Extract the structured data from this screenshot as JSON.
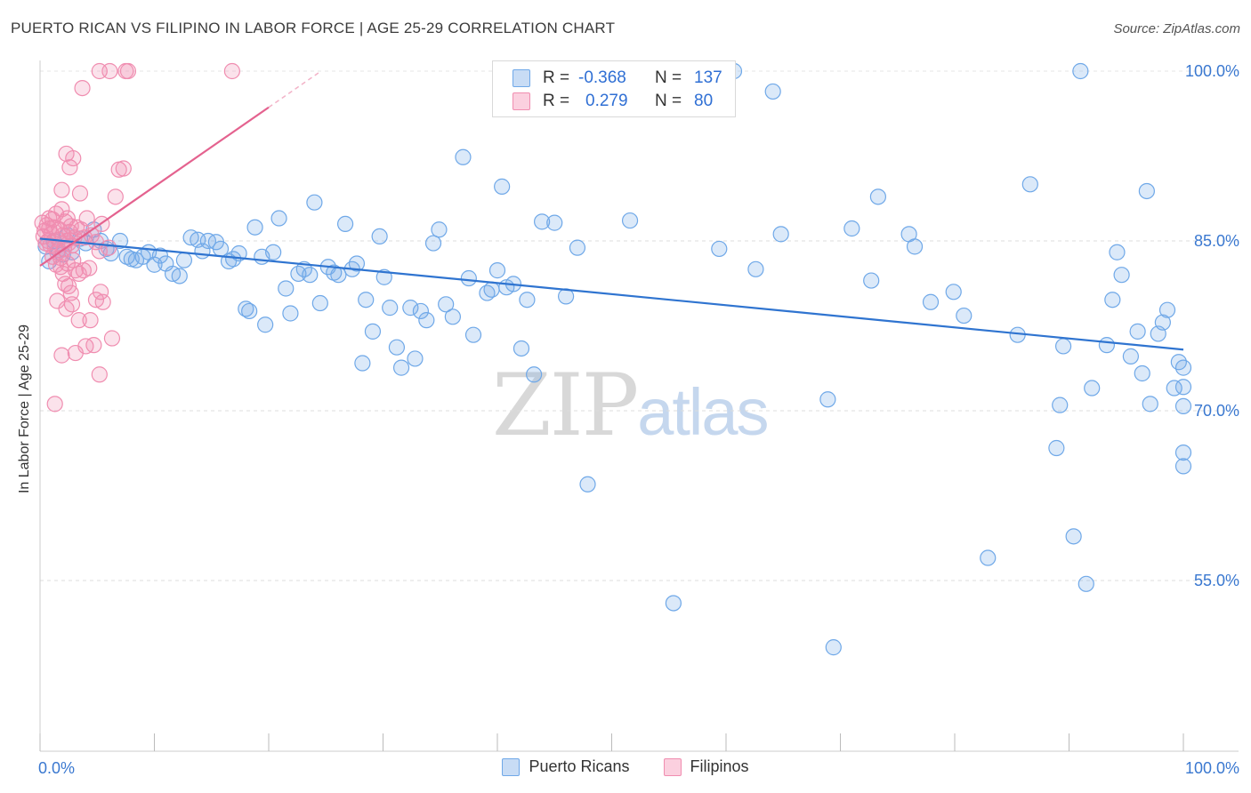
{
  "header": {
    "title": "PUERTO RICAN VS FILIPINO IN LABOR FORCE | AGE 25-29 CORRELATION CHART",
    "source": "Source: ZipAtlas.com"
  },
  "watermark": {
    "zip": "ZIP",
    "atlas": "atlas"
  },
  "legend": {
    "rows": [
      {
        "r_label": "R =",
        "r_value": "-0.368",
        "n_label": "N =",
        "n_value": "137",
        "color": "#6fa8e8"
      },
      {
        "r_label": "R =",
        "r_value": "0.279",
        "n_label": "N =",
        "n_value": "80",
        "color": "#f08db0"
      }
    ],
    "bottom": [
      {
        "name": "Puerto Ricans",
        "color": "#6fa8e8"
      },
      {
        "name": "Filipinos",
        "color": "#f08db0"
      }
    ]
  },
  "chart_data": {
    "type": "scatter",
    "title": "PUERTO RICAN VS FILIPINO IN LABOR FORCE | AGE 25-29 CORRELATION CHART",
    "xlabel": "",
    "ylabel": "In Labor Force | Age 25-29",
    "xlim": [
      0,
      100
    ],
    "ylim": [
      43,
      100
    ],
    "x_tick_labels": [
      "0.0%",
      "100.0%"
    ],
    "y_ticks": [
      55,
      70,
      85,
      100
    ],
    "y_tick_labels": [
      "55.0%",
      "70.0%",
      "85.0%",
      "100.0%"
    ],
    "grid": "horizontal-dashed",
    "series": [
      {
        "name": "Puerto Ricans",
        "color": "#6fa8e8",
        "trend": {
          "x": [
            0,
            100
          ],
          "y": [
            85.2,
            75.4
          ]
        },
        "points": [
          [
            0.5,
            84.5
          ],
          [
            0.8,
            83.2
          ],
          [
            1.2,
            85.0
          ],
          [
            1.6,
            84.2
          ],
          [
            2.0,
            83.8
          ],
          [
            2.4,
            85.5
          ],
          [
            2.8,
            84.0
          ],
          [
            3.5,
            85.2
          ],
          [
            4.0,
            84.8
          ],
          [
            4.7,
            86.0
          ],
          [
            5.3,
            85.0
          ],
          [
            5.8,
            84.3
          ],
          [
            6.2,
            83.9
          ],
          [
            7.0,
            85.0
          ],
          [
            7.6,
            83.6
          ],
          [
            8.0,
            83.4
          ],
          [
            8.4,
            83.3
          ],
          [
            9.0,
            83.6
          ],
          [
            9.5,
            84.0
          ],
          [
            10.0,
            82.9
          ],
          [
            10.5,
            83.7
          ],
          [
            11.0,
            83.0
          ],
          [
            11.6,
            82.1
          ],
          [
            12.2,
            81.9
          ],
          [
            12.6,
            83.3
          ],
          [
            13.2,
            85.3
          ],
          [
            13.8,
            85.1
          ],
          [
            14.2,
            84.1
          ],
          [
            14.7,
            85.0
          ],
          [
            15.4,
            84.9
          ],
          [
            15.8,
            84.3
          ],
          [
            16.5,
            83.2
          ],
          [
            16.9,
            83.4
          ],
          [
            17.4,
            83.9
          ],
          [
            18.0,
            79.0
          ],
          [
            18.3,
            78.8
          ],
          [
            18.8,
            86.2
          ],
          [
            19.4,
            83.6
          ],
          [
            19.7,
            77.6
          ],
          [
            20.4,
            84.0
          ],
          [
            20.9,
            87.0
          ],
          [
            21.5,
            80.8
          ],
          [
            21.9,
            78.6
          ],
          [
            22.6,
            82.1
          ],
          [
            23.1,
            82.5
          ],
          [
            23.6,
            82.0
          ],
          [
            24.0,
            88.4
          ],
          [
            24.5,
            79.5
          ],
          [
            25.2,
            82.7
          ],
          [
            25.7,
            82.2
          ],
          [
            26.1,
            82.0
          ],
          [
            26.7,
            86.5
          ],
          [
            27.3,
            82.5
          ],
          [
            27.7,
            83.0
          ],
          [
            28.2,
            74.2
          ],
          [
            28.5,
            79.8
          ],
          [
            29.1,
            77.0
          ],
          [
            29.7,
            85.4
          ],
          [
            30.1,
            81.8
          ],
          [
            30.6,
            79.1
          ],
          [
            31.2,
            75.6
          ],
          [
            31.6,
            73.8
          ],
          [
            32.4,
            79.1
          ],
          [
            32.8,
            74.6
          ],
          [
            33.3,
            78.8
          ],
          [
            33.8,
            78.0
          ],
          [
            34.4,
            84.8
          ],
          [
            34.9,
            86.0
          ],
          [
            35.5,
            79.4
          ],
          [
            36.1,
            78.3
          ],
          [
            37.0,
            92.4
          ],
          [
            37.5,
            81.7
          ],
          [
            37.9,
            76.7
          ],
          [
            39.1,
            80.4
          ],
          [
            39.5,
            80.7
          ],
          [
            40.0,
            82.4
          ],
          [
            40.4,
            89.8
          ],
          [
            40.8,
            80.9
          ],
          [
            41.4,
            81.2
          ],
          [
            42.1,
            75.5
          ],
          [
            42.6,
            79.8
          ],
          [
            43.2,
            73.2
          ],
          [
            43.9,
            86.7
          ],
          [
            45.0,
            86.6
          ],
          [
            46.0,
            80.1
          ],
          [
            47.0,
            84.4
          ],
          [
            47.9,
            63.5
          ],
          [
            48.8,
            100.0
          ],
          [
            49.9,
            99.8
          ],
          [
            51.1,
            99.6
          ],
          [
            51.6,
            86.8
          ],
          [
            53.8,
            100.0
          ],
          [
            55.4,
            53.0
          ],
          [
            59.4,
            84.3
          ],
          [
            60.7,
            100.0
          ],
          [
            62.6,
            82.5
          ],
          [
            64.1,
            98.2
          ],
          [
            64.8,
            85.6
          ],
          [
            68.9,
            71.0
          ],
          [
            69.4,
            49.1
          ],
          [
            71.0,
            86.1
          ],
          [
            72.7,
            81.5
          ],
          [
            73.3,
            88.9
          ],
          [
            76.0,
            85.6
          ],
          [
            76.5,
            84.5
          ],
          [
            77.9,
            79.6
          ],
          [
            79.9,
            80.5
          ],
          [
            80.8,
            78.4
          ],
          [
            82.9,
            57.0
          ],
          [
            85.5,
            76.7
          ],
          [
            86.6,
            90.0
          ],
          [
            88.9,
            66.7
          ],
          [
            89.2,
            70.5
          ],
          [
            89.5,
            75.7
          ],
          [
            90.4,
            58.9
          ],
          [
            91.0,
            100.0
          ],
          [
            91.5,
            54.7
          ],
          [
            92.0,
            72.0
          ],
          [
            93.3,
            75.8
          ],
          [
            93.8,
            79.8
          ],
          [
            94.2,
            84.0
          ],
          [
            94.6,
            82.0
          ],
          [
            95.4,
            74.8
          ],
          [
            96.0,
            77.0
          ],
          [
            96.4,
            73.3
          ],
          [
            96.8,
            89.4
          ],
          [
            97.1,
            70.6
          ],
          [
            97.8,
            76.8
          ],
          [
            98.2,
            77.8
          ],
          [
            98.6,
            78.9
          ],
          [
            99.2,
            72.0
          ],
          [
            99.6,
            74.3
          ],
          [
            100.0,
            66.3
          ],
          [
            100.0,
            65.1
          ],
          [
            100.0,
            70.4
          ],
          [
            100.0,
            72.1
          ],
          [
            100.0,
            73.8
          ]
        ]
      },
      {
        "name": "Filipinos",
        "color": "#f08db0",
        "trend": {
          "x": [
            0,
            20
          ],
          "y": [
            82.8,
            96.8
          ]
        },
        "points": [
          [
            0.2,
            86.6
          ],
          [
            0.3,
            85.4
          ],
          [
            0.4,
            85.9
          ],
          [
            0.5,
            84.8
          ],
          [
            0.6,
            86.4
          ],
          [
            0.7,
            85.0
          ],
          [
            0.8,
            87.0
          ],
          [
            0.9,
            84.6
          ],
          [
            1.0,
            85.6
          ],
          [
            1.1,
            86.9
          ],
          [
            1.2,
            86.2
          ],
          [
            1.3,
            84.5
          ],
          [
            1.4,
            87.4
          ],
          [
            1.5,
            84.0
          ],
          [
            1.6,
            85.1
          ],
          [
            1.7,
            86.0
          ],
          [
            1.8,
            83.5
          ],
          [
            1.9,
            87.8
          ],
          [
            2.0,
            85.5
          ],
          [
            2.1,
            84.3
          ],
          [
            2.2,
            86.7
          ],
          [
            2.3,
            85.0
          ],
          [
            2.4,
            83.0
          ],
          [
            2.5,
            84.8
          ],
          [
            2.6,
            85.8
          ],
          [
            2.7,
            86.3
          ],
          [
            2.8,
            84.6
          ],
          [
            2.9,
            83.3
          ],
          [
            3.0,
            85.3
          ],
          [
            3.2,
            86.2
          ],
          [
            1.8,
            82.7
          ],
          [
            2.0,
            82.1
          ],
          [
            2.2,
            81.2
          ],
          [
            2.5,
            81.0
          ],
          [
            2.7,
            80.4
          ],
          [
            1.5,
            79.7
          ],
          [
            2.3,
            79.0
          ],
          [
            2.8,
            79.4
          ],
          [
            3.1,
            82.4
          ],
          [
            3.4,
            82.1
          ],
          [
            3.8,
            82.4
          ],
          [
            4.3,
            82.6
          ],
          [
            4.9,
            79.8
          ],
          [
            5.3,
            80.5
          ],
          [
            5.5,
            79.6
          ],
          [
            4.4,
            78.0
          ],
          [
            3.4,
            78.0
          ],
          [
            1.9,
            74.9
          ],
          [
            3.1,
            75.1
          ],
          [
            4.0,
            75.7
          ],
          [
            4.7,
            75.8
          ],
          [
            5.2,
            73.2
          ],
          [
            6.3,
            76.4
          ],
          [
            1.3,
            70.6
          ],
          [
            1.9,
            89.5
          ],
          [
            3.5,
            89.2
          ],
          [
            2.3,
            92.7
          ],
          [
            2.6,
            91.5
          ],
          [
            2.9,
            92.3
          ],
          [
            6.9,
            91.3
          ],
          [
            7.3,
            91.4
          ],
          [
            6.6,
            88.9
          ],
          [
            3.7,
            98.5
          ],
          [
            5.2,
            100.0
          ],
          [
            6.1,
            100.0
          ],
          [
            7.5,
            100.0
          ],
          [
            7.7,
            100.0
          ],
          [
            16.8,
            100.0
          ],
          [
            4.5,
            85.5
          ],
          [
            4.9,
            84.9
          ],
          [
            5.2,
            84.1
          ],
          [
            3.9,
            85.3
          ],
          [
            4.1,
            87.0
          ],
          [
            3.6,
            86.0
          ],
          [
            5.4,
            86.5
          ],
          [
            6.0,
            84.4
          ],
          [
            1.1,
            83.6
          ],
          [
            1.4,
            82.9
          ],
          [
            2.4,
            87.0
          ],
          [
            0.8,
            86.1
          ]
        ]
      }
    ]
  }
}
